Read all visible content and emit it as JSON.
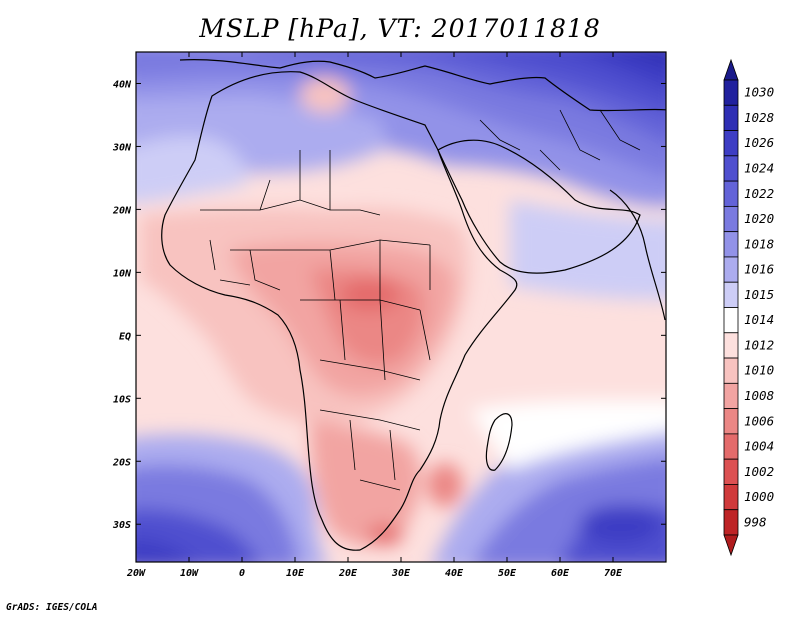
{
  "title": "MSLP [hPa], VT: 2017011818",
  "footer": "GrADS: IGES/COLA",
  "map": {
    "lon_range": [
      -20,
      80
    ],
    "lat_range": [
      -36,
      45
    ],
    "lon_ticks": [
      {
        "value": -20,
        "label": "20W"
      },
      {
        "value": -10,
        "label": "10W"
      },
      {
        "value": 0,
        "label": "0"
      },
      {
        "value": 10,
        "label": "10E"
      },
      {
        "value": 20,
        "label": "20E"
      },
      {
        "value": 30,
        "label": "30E"
      },
      {
        "value": 40,
        "label": "40E"
      },
      {
        "value": 50,
        "label": "50E"
      },
      {
        "value": 60,
        "label": "60E"
      },
      {
        "value": 70,
        "label": "70E"
      }
    ],
    "lat_ticks": [
      {
        "value": 40,
        "label": "40N"
      },
      {
        "value": 30,
        "label": "30N"
      },
      {
        "value": 20,
        "label": "20N"
      },
      {
        "value": 10,
        "label": "10N"
      },
      {
        "value": 0,
        "label": "EQ"
      },
      {
        "value": -10,
        "label": "10S"
      },
      {
        "value": -20,
        "label": "20S"
      },
      {
        "value": -30,
        "label": "30S"
      }
    ]
  },
  "colorbar": {
    "levels": [
      {
        "label": "1030",
        "color": "#21219e"
      },
      {
        "label": "1028",
        "color": "#2e2eb4"
      },
      {
        "label": "1026",
        "color": "#3d3dc4"
      },
      {
        "label": "1024",
        "color": "#4f4fcf"
      },
      {
        "label": "1022",
        "color": "#6363d8"
      },
      {
        "label": "1020",
        "color": "#7a7ae0"
      },
      {
        "label": "1018",
        "color": "#9292e8"
      },
      {
        "label": "1016",
        "color": "#acacef"
      },
      {
        "label": "1015",
        "color": "#cdcdf6"
      },
      {
        "label": "1014",
        "color": "#ffffff"
      },
      {
        "label": "1012",
        "color": "#fde0de"
      },
      {
        "label": "1010",
        "color": "#f8c3c0"
      },
      {
        "label": "1008",
        "color": "#f2a4a2"
      },
      {
        "label": "1006",
        "color": "#eb8785"
      },
      {
        "label": "1004",
        "color": "#e46b6b"
      },
      {
        "label": "1002",
        "color": "#dc5152"
      },
      {
        "label": "1000",
        "color": "#d03a3b"
      },
      {
        "label": "998",
        "color": "#be2426"
      }
    ],
    "top_arrow_color": "#1a1a8a",
    "bottom_arrow_color": "#b01c1e"
  }
}
